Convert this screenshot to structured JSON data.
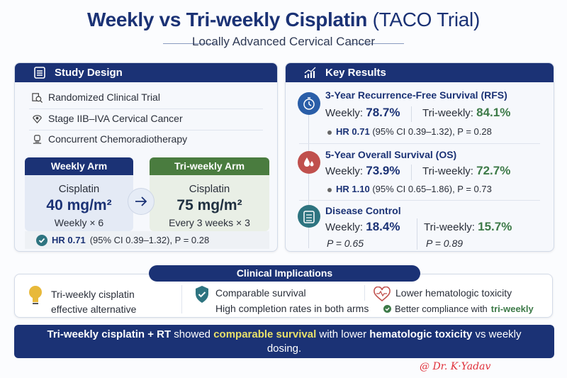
{
  "header": {
    "title_bold": "Weekly vs Tri-weekly Cisplatin",
    "title_light": "(TACO Trial)",
    "subtitle": "Locally Advanced Cervical Cancer"
  },
  "study_design": {
    "heading": "Study Design",
    "items": [
      {
        "icon": "search-document-icon",
        "label": "Randomized Clinical Trial"
      },
      {
        "icon": "location-pin-icon",
        "label": "Stage IIB–IVA Cervical Cancer"
      },
      {
        "icon": "radiotherapy-icon",
        "label": "Concurrent Chemoradiotherapy"
      }
    ],
    "arms": [
      {
        "name": "Weekly Arm",
        "drug": "Cisplatin",
        "dose": "40 mg/m²",
        "schedule": "Weekly × 6",
        "color": "#1b3275"
      },
      {
        "name": "Tri-weekly Arm",
        "drug": "Cisplatin",
        "dose": "75 mg/m²",
        "schedule": "Every 3 weeks × 3",
        "color": "#4a7c3f"
      }
    ],
    "hr_bold": "HR 0.71",
    "hr_rest": "(95% CI 0.39–1.32), P = 0.28"
  },
  "key_results": {
    "heading": "Key Results",
    "sections": [
      {
        "title": "3-Year Recurrence-Free Survival (RFS)",
        "icon": "stopwatch-icon",
        "weekly_label": "Weekly:",
        "weekly": "78.7%",
        "tri_label": "Tri-weekly:",
        "tri": "84.1%",
        "hr_bold": "HR 0.71",
        "hr_rest": "(95% CI 0.39–1.32), P = 0.28",
        "color": "#2a5ea8"
      },
      {
        "title": "5-Year Overall Survival (OS)",
        "icon": "blood-drop-icon",
        "weekly_label": "Weekly:",
        "weekly": "73.9%",
        "tri_label": "Tri-weekly:",
        "tri": "72.7%",
        "hr_bold": "HR 1.10",
        "hr_rest": "(95% CI 0.65–1.86), P = 0.73",
        "color": "#c0504d"
      },
      {
        "title": "Disease Control",
        "icon": "clipboard-icon",
        "weekly_label": "Weekly:",
        "weekly": "18.4%",
        "tri_label": "Tri-weekly:",
        "tri": "15.7%",
        "weekly_p": "P = 0.65",
        "tri_p": "P = 0.89",
        "color": "#2e7480"
      }
    ]
  },
  "implications": {
    "heading": "Clinical Implications",
    "col1": [
      "Tri-weekly cisplatin",
      "effective alternative"
    ],
    "col2": [
      "Comparable survival",
      "High completion rates in both arms"
    ],
    "col3": [
      "Lower hematologic toxicity",
      "Better compliance with",
      "tri-weekly"
    ]
  },
  "conclusion": {
    "p1": "Tri-weekly cisplatin + RT",
    "p2": " showed ",
    "p3": "comparable survival",
    "p4": " with lower ",
    "p5": "hematologic toxicity",
    "p6": " vs weekly dosing."
  },
  "signature": "@ Dr. K·Yadav"
}
